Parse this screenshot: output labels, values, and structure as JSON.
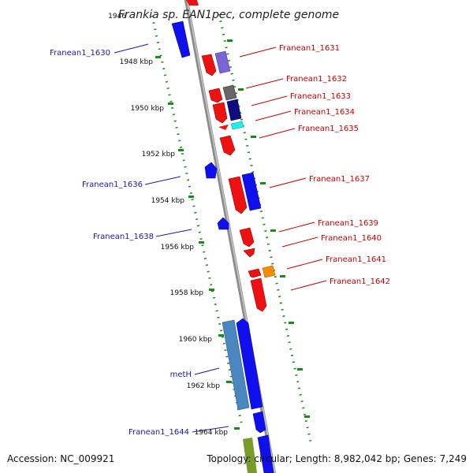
{
  "title": "Frankia sp. EAN1pec, complete genome",
  "footer": {
    "accession": "Accession: NC_009921",
    "topology": "Topology: circular; Length: 8,982,042 bp; Genes: 7,249"
  },
  "ticks": [
    "1946",
    "1948 kbp",
    "1950 kbp",
    "1952 kbp",
    "1954 kbp",
    "1956 kbp",
    "1958 kbp",
    "1960 kbp",
    "1962 kbp",
    "1964 kbp"
  ],
  "genes_right": [
    "Franean1_1631",
    "Franean1_1632",
    "Franean1_1633",
    "Franean1_1634",
    "Franean1_1635",
    "Franean1_1637",
    "Franean1_1639",
    "Franean1_1640",
    "Franean1_1641",
    "Franean1_1642"
  ],
  "genes_left": [
    "Franean1_1630",
    "Franean1_1636",
    "Franean1_1638",
    "metH",
    "Franean1_1644"
  ],
  "colors": {
    "backbone": "#8c8c8c",
    "dots": "#1a8a1a",
    "label_right": "#cc0000",
    "label_left": "#1a1aa8",
    "red": "#ee1111",
    "blue": "#1010ee",
    "purple": "#7a64d6",
    "grey": "#666666",
    "navy": "#0d0d80",
    "cyan": "#22eeee",
    "orange": "#f28c00",
    "steel": "#4a86c0",
    "olive": "#7a9a2a"
  }
}
